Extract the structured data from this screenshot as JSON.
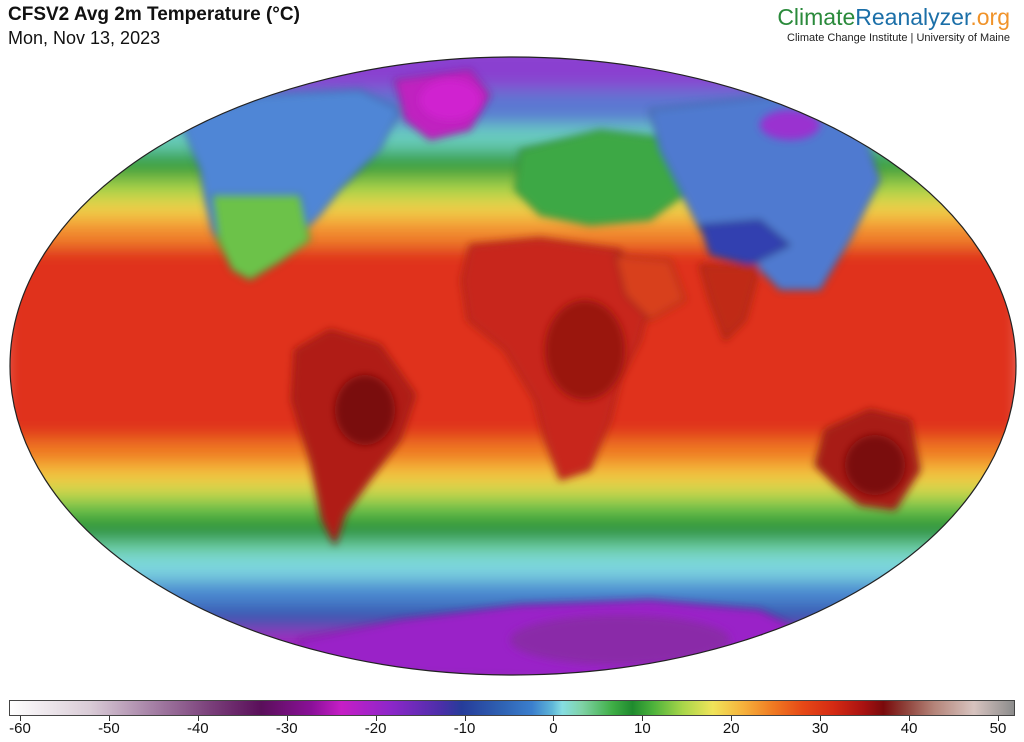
{
  "header": {
    "title": "CFSV2 Avg 2m Temperature (°C)",
    "date": "Mon, Nov 13, 2023"
  },
  "brand": {
    "part1": "Climate",
    "part2": "Reanalyzer",
    "part3": ".org",
    "affiliation": "Climate Change Institute | University of Maine"
  },
  "colorbar": {
    "ticks": [
      "-60",
      "-50",
      "-40",
      "-30",
      "-20",
      "-10",
      "0",
      "10",
      "20",
      "30",
      "40",
      "50"
    ],
    "min": -60,
    "max": 50
  },
  "colors": {
    "tropics": "#e0301a",
    "hot": "#8c1010",
    "warm": "#f28a2e",
    "mild": "#f4d34a",
    "temperate": "#2e9a3a",
    "cool": "#5fb6d8",
    "cold": "#4a6ac8",
    "frigid": "#c21ec6",
    "extreme": "#7a2fa0",
    "coast": "#111111"
  }
}
